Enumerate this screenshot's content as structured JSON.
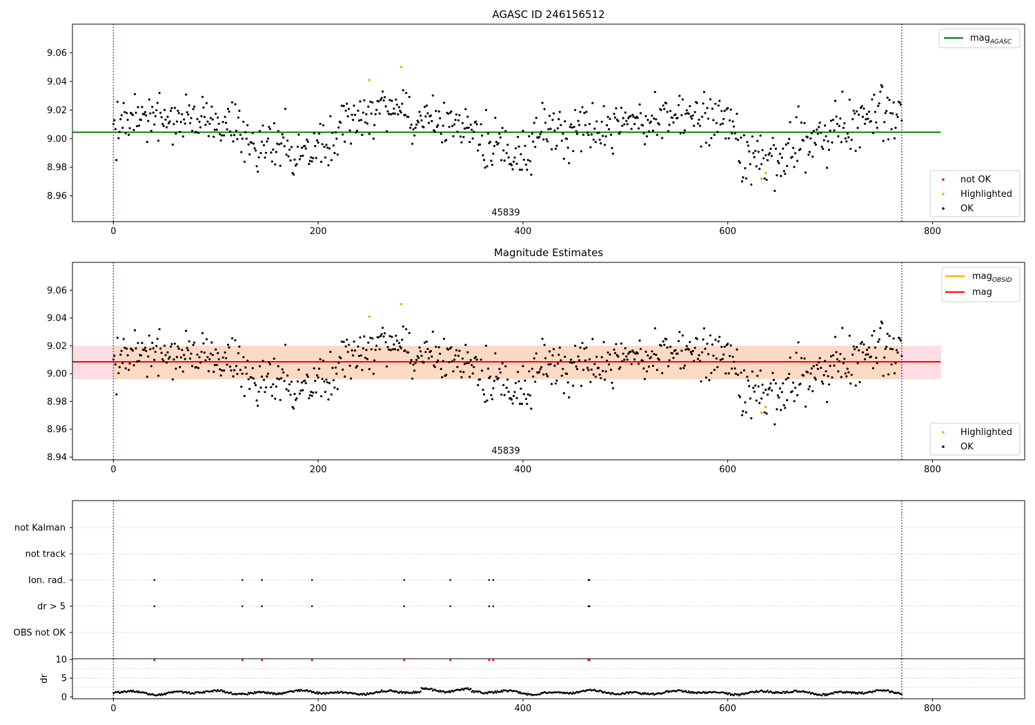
{
  "chart_data": [
    {
      "type": "scatter",
      "title": "AGASC ID 246156512",
      "annotation": "45839",
      "xlim": [
        -40,
        890
      ],
      "ylim": [
        8.942,
        9.08
      ],
      "xticks": [
        0,
        200,
        400,
        600,
        800
      ],
      "xtick_labels": [
        "0",
        "200",
        "400",
        "600",
        "800"
      ],
      "yticks": [
        8.96,
        8.98,
        9.0,
        9.02,
        9.04,
        9.06
      ],
      "ytick_labels": [
        "8.96",
        "8.98",
        "9.00",
        "9.02",
        "9.04",
        "9.06"
      ],
      "vlines": [
        0,
        770
      ],
      "hline": {
        "name": "mag",
        "name_sub": "AGASC",
        "value": 9.0045,
        "x_range": [
          -40,
          808
        ],
        "color": "#008000"
      },
      "legend_lines": [
        {
          "name": "mag",
          "sub": "AGASC",
          "color": "#008000"
        }
      ],
      "legend_points": [
        {
          "name": "not OK",
          "color": "#ff0000"
        },
        {
          "name": "Highlighted",
          "color": "#ffa500"
        },
        {
          "name": "OK",
          "color": "#000000"
        }
      ],
      "highlighted_points": [
        [
          250,
          9.041
        ],
        [
          281,
          9.05
        ],
        [
          633,
          8.972
        ],
        [
          637,
          8.976
        ]
      ],
      "notok_points": []
    },
    {
      "type": "scatter",
      "title": "Magnitude Estimates",
      "annotation": "45839",
      "xlim": [
        -40,
        890
      ],
      "ylim": [
        8.938,
        9.08
      ],
      "xticks": [
        0,
        200,
        400,
        600,
        800
      ],
      "xtick_labels": [
        "0",
        "200",
        "400",
        "600",
        "800"
      ],
      "yticks": [
        8.94,
        8.96,
        8.98,
        9.0,
        9.02,
        9.04,
        9.06
      ],
      "ytick_labels": [
        "8.94",
        "8.96",
        "8.98",
        "9.00",
        "9.02",
        "9.04",
        "9.06"
      ],
      "vlines": [
        0,
        770
      ],
      "band_outer": [
        8.996,
        9.02
      ],
      "band_inner": [
        8.996,
        9.02
      ],
      "band_x_range": [
        -40,
        808
      ],
      "obsid_band_x_range": [
        0,
        770
      ],
      "hline": {
        "name": "mag",
        "value": 9.0085,
        "x_range": [
          -40,
          808
        ],
        "color": "#ff0000"
      },
      "legend_lines": [
        {
          "name": "mag",
          "sub": "OBSID",
          "color": "#ffa500"
        },
        {
          "name": "mag",
          "sub": "",
          "color": "#ff0000"
        }
      ],
      "legend_points": [
        {
          "name": "Highlighted",
          "color": "#ffa500"
        },
        {
          "name": "OK",
          "color": "#000000"
        }
      ],
      "highlighted_points": [
        [
          250,
          9.041
        ],
        [
          281,
          9.05
        ],
        [
          633,
          8.972
        ],
        [
          637,
          8.976
        ]
      ]
    },
    {
      "type": "scatter",
      "categories": [
        "OBS not OK",
        "dr > 5",
        "Ion. rad.",
        "not track",
        "not Kalman"
      ],
      "xlim": [
        -40,
        890
      ],
      "vlines": [
        0,
        770
      ],
      "flag_x": [
        40,
        126,
        145,
        194,
        284,
        329,
        367,
        371,
        464,
        465
      ],
      "flags": {
        "dr > 5": [
          40,
          126,
          145,
          194,
          284,
          329,
          367,
          371,
          464,
          465
        ],
        "Ion. rad.": [
          40,
          126,
          145,
          194,
          284,
          329,
          367,
          371,
          464,
          465
        ]
      }
    },
    {
      "type": "scatter",
      "ylabel": "dr",
      "xlim": [
        -40,
        890
      ],
      "ylim": [
        -0.5,
        10.2
      ],
      "xticks": [
        0,
        200,
        400,
        600,
        800
      ],
      "xtick_labels": [
        "0",
        "200",
        "400",
        "600",
        "800"
      ],
      "yticks": [
        0,
        5,
        10
      ],
      "ytick_labels": [
        "0",
        "5",
        "10"
      ],
      "vlines": [
        0,
        770
      ],
      "clipped_value": 10,
      "clipped_x": [
        40,
        126,
        145,
        194,
        284,
        329,
        367,
        371,
        464,
        465
      ]
    }
  ],
  "colors": {
    "axes": "#000000",
    "ok_points": "#000000",
    "highlighted": "#ffa500",
    "not_ok": "#ff0000",
    "mag_agasc_line": "#008000",
    "mag_line": "#ff0000",
    "band_outer": "#ffdde3",
    "band_inner": "#fcd9c4",
    "vline": "#800080",
    "grid": "#b0b0b0"
  }
}
